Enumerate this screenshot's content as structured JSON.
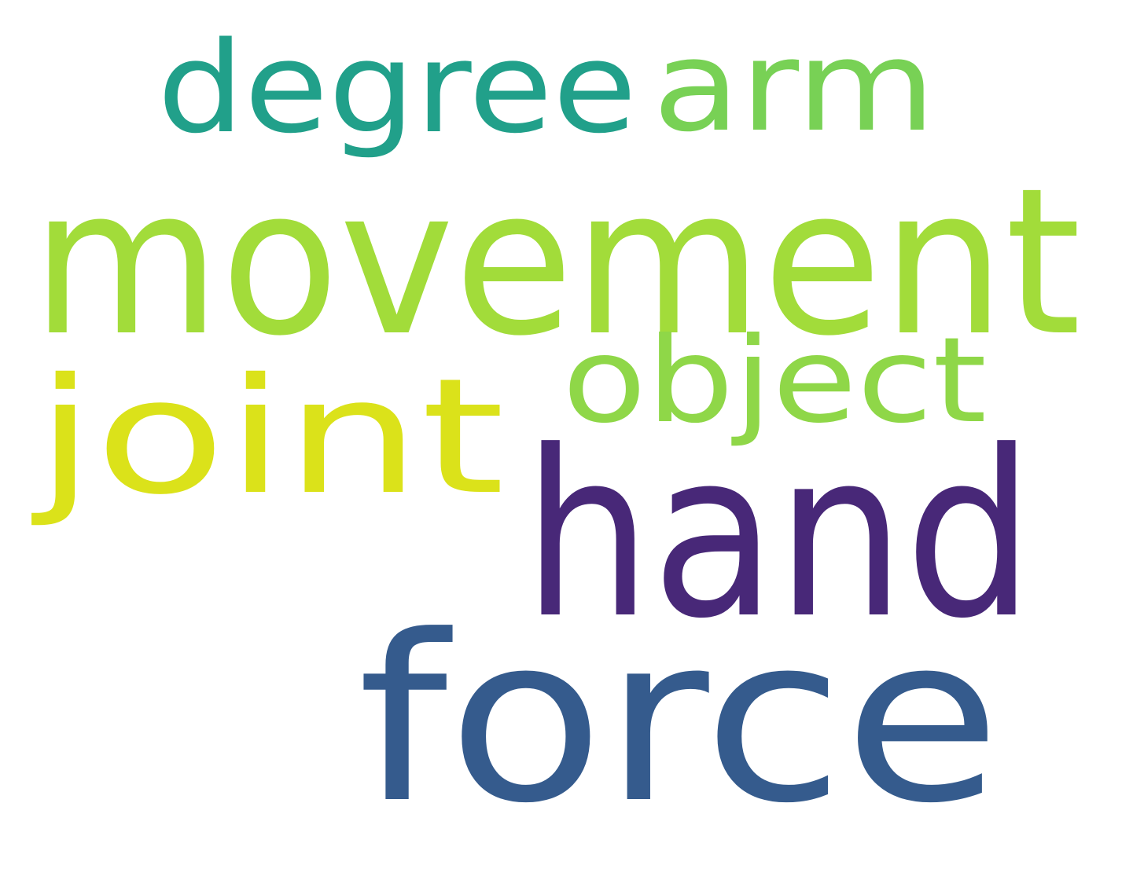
{
  "word_cloud": {
    "background": "#ffffff",
    "words": [
      {
        "text": "movement",
        "color": "#a2dc3a"
      },
      {
        "text": "hand",
        "color": "#482878"
      },
      {
        "text": "force",
        "color": "#355b8d"
      },
      {
        "text": "joint",
        "color": "#dbe21a"
      },
      {
        "text": "degree",
        "color": "#21a08a"
      },
      {
        "text": "arm",
        "color": "#78d155"
      },
      {
        "text": "object",
        "color": "#8fd748"
      }
    ]
  }
}
